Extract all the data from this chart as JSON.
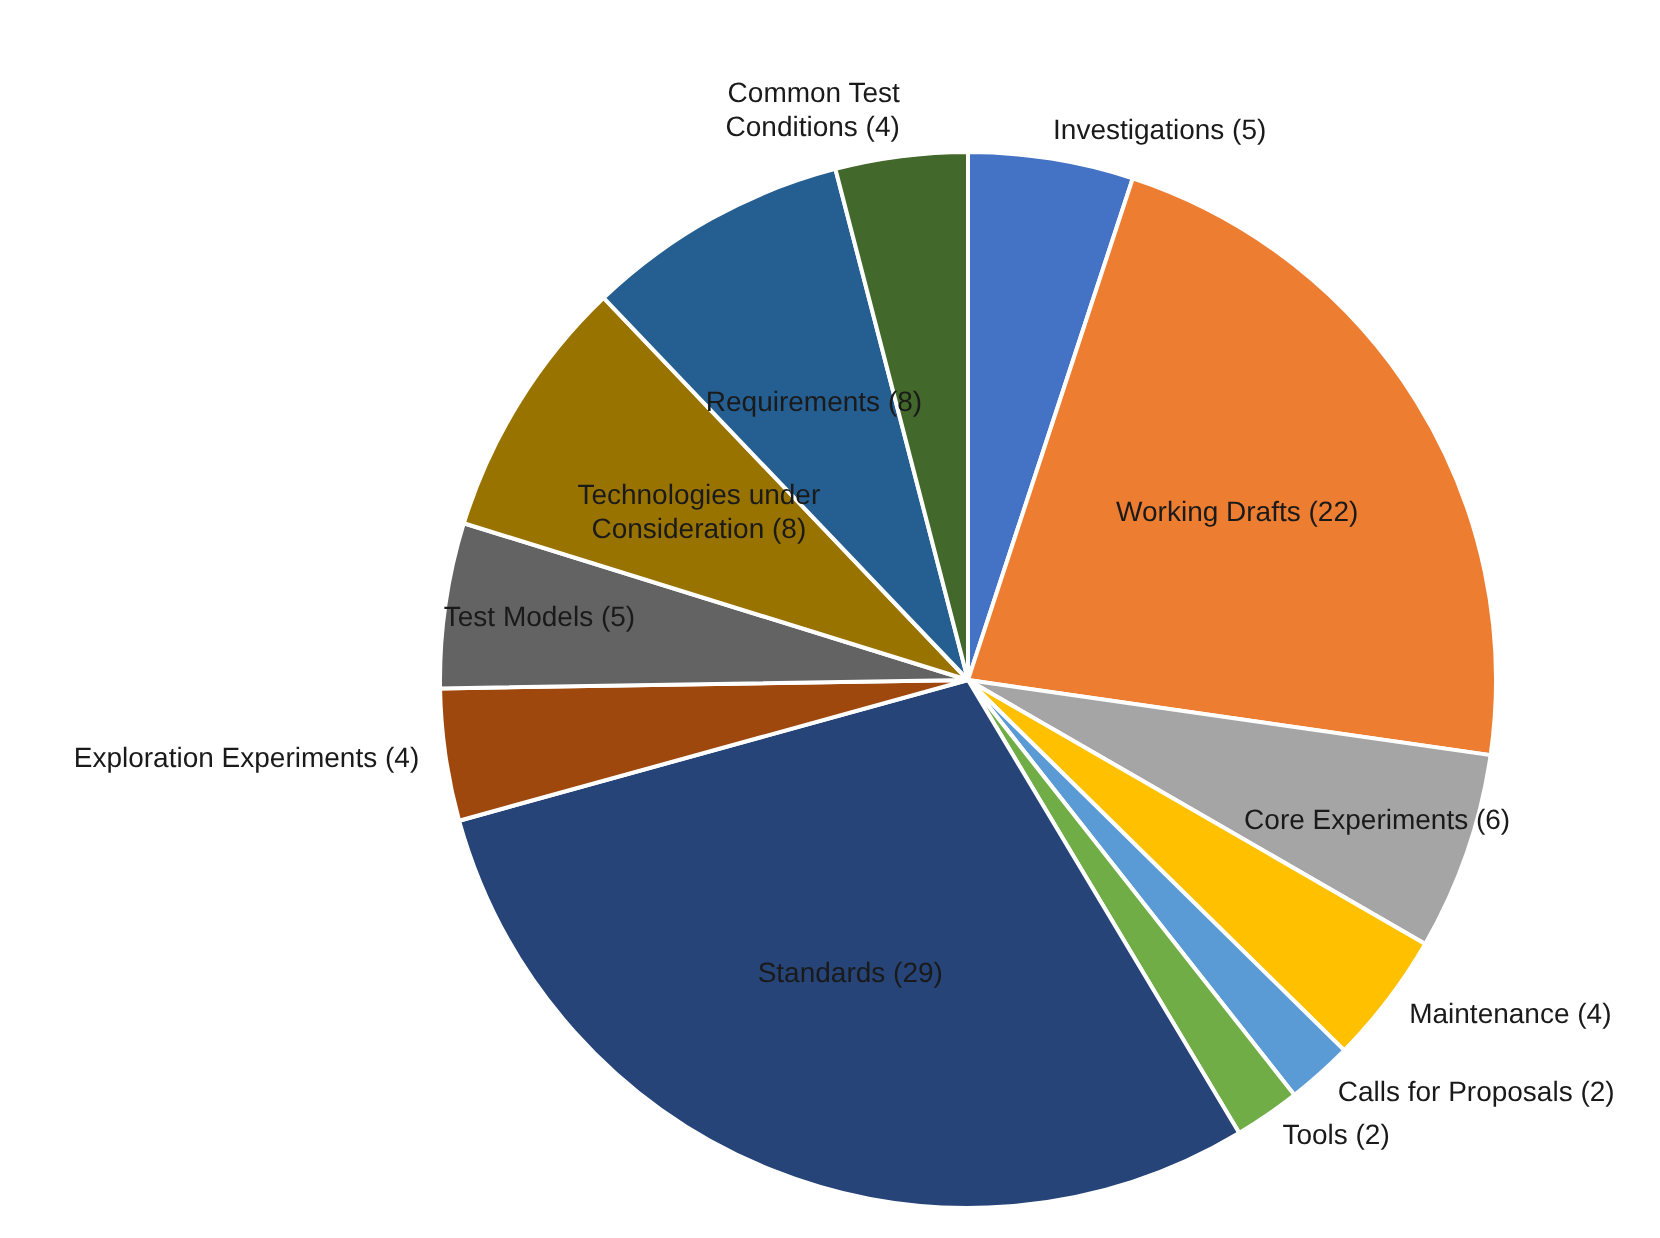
{
  "chart_data": {
    "type": "pie",
    "categories": [
      "Investigations",
      "Working Drafts",
      "Core Experiments",
      "Maintenance",
      "Calls for Proposals",
      "Tools",
      "Standards",
      "Exploration Experiments",
      "Test Models",
      "Technologies under Consideration",
      "Requirements",
      "Common Test Conditions"
    ],
    "values": [
      5,
      22,
      6,
      4,
      2,
      2,
      29,
      4,
      5,
      8,
      8,
      4
    ],
    "colors": [
      "#4472c4",
      "#ed7d31",
      "#a5a5a5",
      "#ffc000",
      "#5b9bd5",
      "#70ad47",
      "#264478",
      "#9e480e",
      "#636363",
      "#997300",
      "#255e91",
      "#43682b"
    ],
    "value_labels": [
      "(5)",
      "(22)",
      "(6)",
      "(4)",
      "(2)",
      "(2)",
      "(29)",
      "(4)",
      "(5)",
      "(8)",
      "(8)",
      "(4)"
    ],
    "legend": false
  }
}
